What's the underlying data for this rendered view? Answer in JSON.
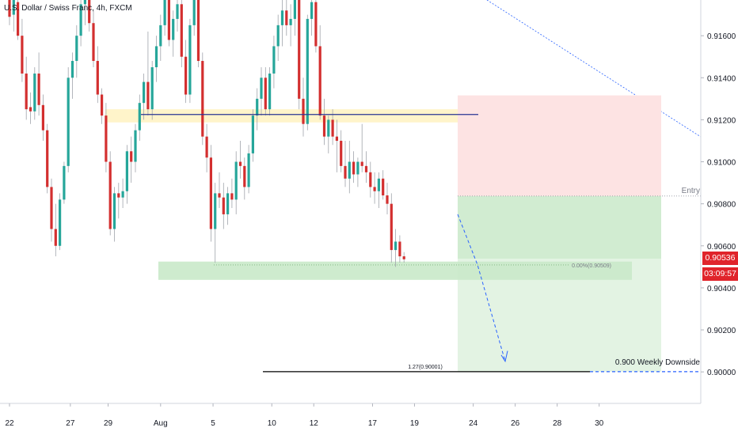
{
  "chart_data": {
    "type": "candlestick",
    "title": "U.S. Dollar / Swiss Franc, 4h, FXCM",
    "ylim": [
      0.8985,
      0.9177
    ],
    "y_ticks": [
      {
        "label": "0.91600",
        "value": 0.916
      },
      {
        "label": "0.91400",
        "value": 0.914
      },
      {
        "label": "0.91200",
        "value": 0.912
      },
      {
        "label": "0.91000",
        "value": 0.91
      },
      {
        "label": "0.90800",
        "value": 0.908
      },
      {
        "label": "0.90600",
        "value": 0.906
      },
      {
        "label": "0.90400",
        "value": 0.904
      },
      {
        "label": "0.90200",
        "value": 0.902
      },
      {
        "label": "0.90000",
        "value": 0.9
      }
    ],
    "x_ticks": [
      {
        "label": "22",
        "bar": 0
      },
      {
        "label": "27",
        "bar": 14.5
      },
      {
        "label": "29",
        "bar": 23.5
      },
      {
        "label": "Aug",
        "bar": 36
      },
      {
        "label": "5",
        "bar": 48.5
      },
      {
        "label": "10",
        "bar": 62.5
      },
      {
        "label": "12",
        "bar": 72.5
      },
      {
        "label": "17",
        "bar": 86.5
      },
      {
        "label": "19",
        "bar": 96.5
      },
      {
        "label": "24",
        "bar": 110.5
      },
      {
        "label": "26",
        "bar": 120.5
      },
      {
        "label": "28",
        "bar": 130.5
      },
      {
        "label": "30",
        "bar": 140.5
      }
    ],
    "candles": [
      {
        "o": 0.9178,
        "h": 0.9182,
        "l": 0.9165,
        "c": 0.9169
      },
      {
        "o": 0.917,
        "h": 0.9182,
        "l": 0.9162,
        "c": 0.9178
      },
      {
        "o": 0.9176,
        "h": 0.9182,
        "l": 0.9158,
        "c": 0.916
      },
      {
        "o": 0.916,
        "h": 0.9168,
        "l": 0.9138,
        "c": 0.9142
      },
      {
        "o": 0.9142,
        "h": 0.915,
        "l": 0.912,
        "c": 0.9125
      },
      {
        "o": 0.9126,
        "h": 0.9133,
        "l": 0.9118,
        "c": 0.9124
      },
      {
        "o": 0.9124,
        "h": 0.9145,
        "l": 0.912,
        "c": 0.9142
      },
      {
        "o": 0.9142,
        "h": 0.9152,
        "l": 0.9122,
        "c": 0.9127
      },
      {
        "o": 0.9127,
        "h": 0.9132,
        "l": 0.911,
        "c": 0.9115
      },
      {
        "o": 0.9115,
        "h": 0.9118,
        "l": 0.9085,
        "c": 0.9088
      },
      {
        "o": 0.9088,
        "h": 0.9092,
        "l": 0.9062,
        "c": 0.9068
      },
      {
        "o": 0.9068,
        "h": 0.908,
        "l": 0.9055,
        "c": 0.906
      },
      {
        "o": 0.906,
        "h": 0.9085,
        "l": 0.9058,
        "c": 0.9082
      },
      {
        "o": 0.9082,
        "h": 0.91,
        "l": 0.908,
        "c": 0.9098
      },
      {
        "o": 0.9098,
        "h": 0.9145,
        "l": 0.9095,
        "c": 0.914
      },
      {
        "o": 0.914,
        "h": 0.9152,
        "l": 0.913,
        "c": 0.9148
      },
      {
        "o": 0.9148,
        "h": 0.9165,
        "l": 0.914,
        "c": 0.916
      },
      {
        "o": 0.916,
        "h": 0.9182,
        "l": 0.9155,
        "c": 0.9175
      },
      {
        "o": 0.9175,
        "h": 0.9182,
        "l": 0.9165,
        "c": 0.9178
      },
      {
        "o": 0.9178,
        "h": 0.9182,
        "l": 0.9162,
        "c": 0.9166
      },
      {
        "o": 0.9166,
        "h": 0.9172,
        "l": 0.9145,
        "c": 0.9148
      },
      {
        "o": 0.9148,
        "h": 0.9155,
        "l": 0.9128,
        "c": 0.9132
      },
      {
        "o": 0.9132,
        "h": 0.9135,
        "l": 0.9118,
        "c": 0.9122
      },
      {
        "o": 0.9122,
        "h": 0.9128,
        "l": 0.9095,
        "c": 0.91
      },
      {
        "o": 0.91,
        "h": 0.9105,
        "l": 0.9065,
        "c": 0.9068
      },
      {
        "o": 0.9068,
        "h": 0.9088,
        "l": 0.9062,
        "c": 0.9085
      },
      {
        "o": 0.9085,
        "h": 0.909,
        "l": 0.9073,
        "c": 0.9083
      },
      {
        "o": 0.9083,
        "h": 0.9092,
        "l": 0.9078,
        "c": 0.9086
      },
      {
        "o": 0.9086,
        "h": 0.9108,
        "l": 0.908,
        "c": 0.9105
      },
      {
        "o": 0.9105,
        "h": 0.9112,
        "l": 0.909,
        "c": 0.91
      },
      {
        "o": 0.91,
        "h": 0.9118,
        "l": 0.9095,
        "c": 0.9115
      },
      {
        "o": 0.9115,
        "h": 0.9132,
        "l": 0.911,
        "c": 0.9128
      },
      {
        "o": 0.9128,
        "h": 0.9142,
        "l": 0.912,
        "c": 0.9138
      },
      {
        "o": 0.9138,
        "h": 0.9162,
        "l": 0.9122,
        "c": 0.9125
      },
      {
        "o": 0.9125,
        "h": 0.9148,
        "l": 0.912,
        "c": 0.9145
      },
      {
        "o": 0.9145,
        "h": 0.916,
        "l": 0.9138,
        "c": 0.9155
      },
      {
        "o": 0.9155,
        "h": 0.917,
        "l": 0.9148,
        "c": 0.9165
      },
      {
        "o": 0.9165,
        "h": 0.9182,
        "l": 0.916,
        "c": 0.9178
      },
      {
        "o": 0.9178,
        "h": 0.9182,
        "l": 0.9155,
        "c": 0.9158
      },
      {
        "o": 0.9158,
        "h": 0.9172,
        "l": 0.915,
        "c": 0.9168
      },
      {
        "o": 0.9168,
        "h": 0.9182,
        "l": 0.9162,
        "c": 0.9175
      },
      {
        "o": 0.9175,
        "h": 0.9182,
        "l": 0.9145,
        "c": 0.915
      },
      {
        "o": 0.915,
        "h": 0.9158,
        "l": 0.9128,
        "c": 0.9132
      },
      {
        "o": 0.9132,
        "h": 0.9168,
        "l": 0.9128,
        "c": 0.9165
      },
      {
        "o": 0.9165,
        "h": 0.9182,
        "l": 0.916,
        "c": 0.9178
      },
      {
        "o": 0.9178,
        "h": 0.9182,
        "l": 0.9145,
        "c": 0.9148
      },
      {
        "o": 0.9148,
        "h": 0.9152,
        "l": 0.9108,
        "c": 0.9112
      },
      {
        "o": 0.9112,
        "h": 0.9118,
        "l": 0.9095,
        "c": 0.9102
      },
      {
        "o": 0.9102,
        "h": 0.9108,
        "l": 0.9062,
        "c": 0.9068
      },
      {
        "o": 0.9068,
        "h": 0.909,
        "l": 0.9052,
        "c": 0.9085
      },
      {
        "o": 0.9085,
        "h": 0.9095,
        "l": 0.9078,
        "c": 0.9083
      },
      {
        "o": 0.9083,
        "h": 0.909,
        "l": 0.9068,
        "c": 0.9075
      },
      {
        "o": 0.9075,
        "h": 0.9088,
        "l": 0.907,
        "c": 0.9085
      },
      {
        "o": 0.9085,
        "h": 0.9092,
        "l": 0.9078,
        "c": 0.9082
      },
      {
        "o": 0.9082,
        "h": 0.9105,
        "l": 0.9075,
        "c": 0.91
      },
      {
        "o": 0.91,
        "h": 0.911,
        "l": 0.9092,
        "c": 0.9098
      },
      {
        "o": 0.9098,
        "h": 0.9102,
        "l": 0.9082,
        "c": 0.9088
      },
      {
        "o": 0.9088,
        "h": 0.9108,
        "l": 0.9085,
        "c": 0.9104
      },
      {
        "o": 0.9104,
        "h": 0.9125,
        "l": 0.91,
        "c": 0.9122
      },
      {
        "o": 0.9122,
        "h": 0.9135,
        "l": 0.9115,
        "c": 0.913
      },
      {
        "o": 0.913,
        "h": 0.9145,
        "l": 0.9122,
        "c": 0.914
      },
      {
        "o": 0.914,
        "h": 0.9145,
        "l": 0.9122,
        "c": 0.9125
      },
      {
        "o": 0.9125,
        "h": 0.9145,
        "l": 0.9122,
        "c": 0.9142
      },
      {
        "o": 0.9142,
        "h": 0.916,
        "l": 0.9135,
        "c": 0.9155
      },
      {
        "o": 0.9155,
        "h": 0.917,
        "l": 0.9148,
        "c": 0.9165
      },
      {
        "o": 0.9165,
        "h": 0.9182,
        "l": 0.9155,
        "c": 0.9172
      },
      {
        "o": 0.9172,
        "h": 0.9182,
        "l": 0.916,
        "c": 0.9165
      },
      {
        "o": 0.9165,
        "h": 0.9175,
        "l": 0.9155,
        "c": 0.9168
      },
      {
        "o": 0.9168,
        "h": 0.9182,
        "l": 0.916,
        "c": 0.9178
      },
      {
        "o": 0.9178,
        "h": 0.9182,
        "l": 0.9125,
        "c": 0.913
      },
      {
        "o": 0.913,
        "h": 0.914,
        "l": 0.9112,
        "c": 0.9118
      },
      {
        "o": 0.9118,
        "h": 0.917,
        "l": 0.9115,
        "c": 0.9168
      },
      {
        "o": 0.9168,
        "h": 0.9182,
        "l": 0.916,
        "c": 0.9176
      },
      {
        "o": 0.9176,
        "h": 0.9182,
        "l": 0.9152,
        "c": 0.9155
      },
      {
        "o": 0.9155,
        "h": 0.9165,
        "l": 0.912,
        "c": 0.9122
      },
      {
        "o": 0.9122,
        "h": 0.913,
        "l": 0.9108,
        "c": 0.9112
      },
      {
        "o": 0.9112,
        "h": 0.9122,
        "l": 0.9104,
        "c": 0.912
      },
      {
        "o": 0.912,
        "h": 0.9125,
        "l": 0.9108,
        "c": 0.9112
      },
      {
        "o": 0.9112,
        "h": 0.912,
        "l": 0.9095,
        "c": 0.911
      },
      {
        "o": 0.911,
        "h": 0.9115,
        "l": 0.9095,
        "c": 0.9098
      },
      {
        "o": 0.9098,
        "h": 0.911,
        "l": 0.9088,
        "c": 0.9092
      },
      {
        "o": 0.9092,
        "h": 0.911,
        "l": 0.9085,
        "c": 0.91
      },
      {
        "o": 0.91,
        "h": 0.9105,
        "l": 0.909,
        "c": 0.9094
      },
      {
        "o": 0.9094,
        "h": 0.9102,
        "l": 0.9088,
        "c": 0.91
      },
      {
        "o": 0.91,
        "h": 0.9118,
        "l": 0.9095,
        "c": 0.9098
      },
      {
        "o": 0.9098,
        "h": 0.9105,
        "l": 0.909,
        "c": 0.9095
      },
      {
        "o": 0.9095,
        "h": 0.91,
        "l": 0.9083,
        "c": 0.9088
      },
      {
        "o": 0.9088,
        "h": 0.9095,
        "l": 0.908,
        "c": 0.9086
      },
      {
        "o": 0.9086,
        "h": 0.9095,
        "l": 0.9078,
        "c": 0.9092
      },
      {
        "o": 0.9092,
        "h": 0.9096,
        "l": 0.9082,
        "c": 0.9084
      },
      {
        "o": 0.9084,
        "h": 0.909,
        "l": 0.9075,
        "c": 0.908
      },
      {
        "o": 0.908,
        "h": 0.9085,
        "l": 0.9052,
        "c": 0.9058
      },
      {
        "o": 0.9058,
        "h": 0.9068,
        "l": 0.905,
        "c": 0.9062
      },
      {
        "o": 0.9062,
        "h": 0.9065,
        "l": 0.9052,
        "c": 0.9055
      },
      {
        "o": 0.9055,
        "h": 0.9057,
        "l": 0.9052,
        "c": 0.90536
      }
    ],
    "zones": [
      {
        "name": "resistance-zone",
        "y_top": 0.9124,
        "y_bottom": 0.9122,
        "color": "#fff3c4"
      },
      {
        "name": "support-zone",
        "y_top": 0.90525,
        "y_bottom": 0.90475,
        "color": "#c9e9c9"
      }
    ],
    "position": {
      "entry": 0.90837,
      "stop": 0.91316,
      "target": 0.90001,
      "entry_label": "Entry",
      "stop_color": "#fde3e3",
      "target_color": "#d1ecd1",
      "target_light_color": "#e3f3e3"
    },
    "resistance_line": 0.91225,
    "support_line_label": "0.00%(0.90509)",
    "target_line_label": "1.27(0.90001)",
    "downside_label": "0.900 Weekly Downside",
    "current_price": "0.90536",
    "countdown": "03:09:57",
    "colors": {
      "up": "#26a69a",
      "down": "#d32f2f",
      "accent_blue": "#2962ff",
      "line_dark": "#131722"
    }
  }
}
